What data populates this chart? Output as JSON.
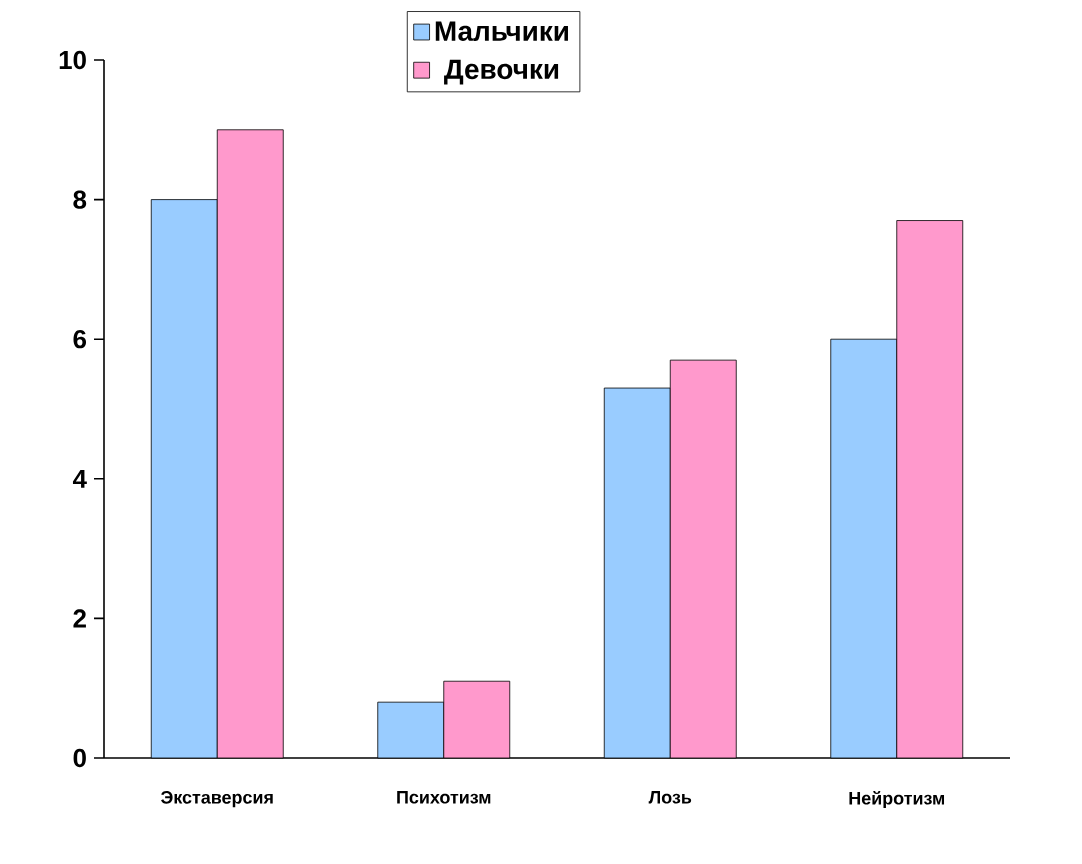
{
  "chart_data": {
    "type": "bar",
    "categories": [
      "Экставерсия",
      "Психотизм",
      "Лозь",
      "Нейротизм"
    ],
    "series": [
      {
        "name": "Мальчики",
        "color": "#99ccff",
        "values": [
          8,
          0.8,
          5.3,
          6
        ]
      },
      {
        "name": "Девочки",
        "color": "#ff99cc",
        "values": [
          9,
          1.1,
          5.7,
          7.7
        ]
      }
    ],
    "ylim": [
      0,
      10
    ],
    "yticks": [
      0,
      2,
      4,
      6,
      8,
      10
    ],
    "grid": false,
    "legend": "top"
  }
}
